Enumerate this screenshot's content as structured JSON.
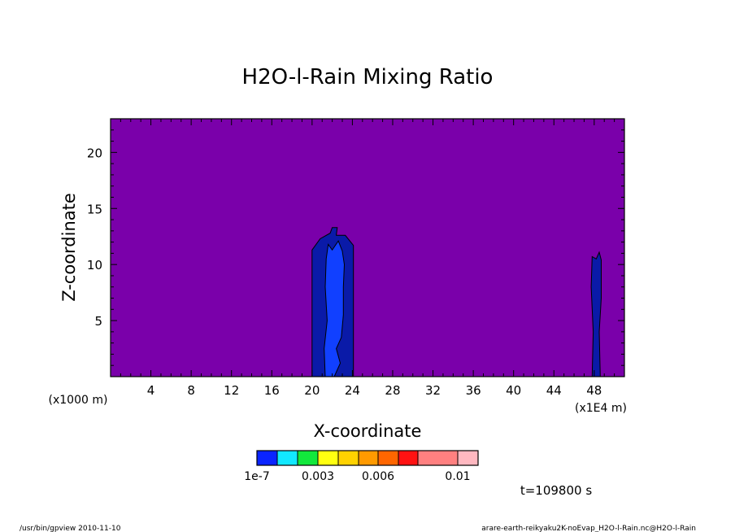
{
  "chart_data": {
    "type": "heatmap",
    "title": "H2O-l-Rain Mixing Ratio",
    "xlabel": "X-coordinate",
    "ylabel": "Z-coordinate",
    "x_unit": "(x1E4 m)",
    "y_unit": "(x1000 m)",
    "xlim": [
      0,
      51
    ],
    "ylim": [
      0,
      23
    ],
    "x_ticks": [
      4,
      8,
      12,
      16,
      20,
      24,
      28,
      32,
      36,
      40,
      44,
      48
    ],
    "y_ticks": [
      5,
      10,
      15,
      20
    ],
    "background_color": "#7a00aa",
    "levels": [
      {
        "color": "#0a24ff"
      },
      {
        "color": "#12e8ff"
      },
      {
        "color": "#12e83c"
      },
      {
        "color": "#ffff10"
      },
      {
        "color": "#ffd200"
      },
      {
        "color": "#ff9a00"
      },
      {
        "color": "#ff6600"
      },
      {
        "color": "#ff1212"
      },
      {
        "color": "#ff8080"
      },
      {
        "color": "#ffb8c0"
      }
    ],
    "colorbar_labels": [
      "1e-7",
      "0.003",
      "0.006",
      "0.01"
    ],
    "regions": [
      {
        "level": 0,
        "color": "#0a1aa8",
        "outline": [
          [
            20,
            0
          ],
          [
            20,
            11.3
          ],
          [
            20.8,
            12.3
          ],
          [
            21.8,
            12.8
          ],
          [
            22,
            13.3
          ],
          [
            22.5,
            13.3
          ],
          [
            22.4,
            12.6
          ],
          [
            23.3,
            12.6
          ],
          [
            24.1,
            11.7
          ],
          [
            24.1,
            0
          ]
        ]
      },
      {
        "level": 1,
        "color": "#1140ff",
        "outline": [
          [
            21.3,
            0
          ],
          [
            21.2,
            2.5
          ],
          [
            21.5,
            5
          ],
          [
            21.3,
            8
          ],
          [
            21.4,
            10.5
          ],
          [
            21.6,
            11.8
          ],
          [
            22,
            11.3
          ],
          [
            22.6,
            12.1
          ],
          [
            23,
            11.2
          ],
          [
            23.2,
            10
          ],
          [
            23.1,
            8
          ],
          [
            23.1,
            5.5
          ],
          [
            22.9,
            3.5
          ],
          [
            22.4,
            2.5
          ],
          [
            22.8,
            1.2
          ],
          [
            22.2,
            0
          ]
        ]
      },
      {
        "level": 0,
        "color": "#0a1aa8",
        "outline": [
          [
            47.8,
            0
          ],
          [
            47.9,
            4
          ],
          [
            47.7,
            8
          ],
          [
            47.8,
            10.7
          ],
          [
            48.2,
            10.5
          ],
          [
            48.5,
            11.1
          ],
          [
            48.7,
            10.4
          ],
          [
            48.7,
            7
          ],
          [
            48.5,
            4
          ],
          [
            48.6,
            0
          ]
        ]
      }
    ],
    "annotation": "t=109800 s"
  },
  "footer": {
    "left": "/usr/bin/gpview   2010-11-10",
    "right": "arare-earth-reikyaku2K-noEvap_H2O-l-Rain.nc@H2O-l-Rain"
  }
}
